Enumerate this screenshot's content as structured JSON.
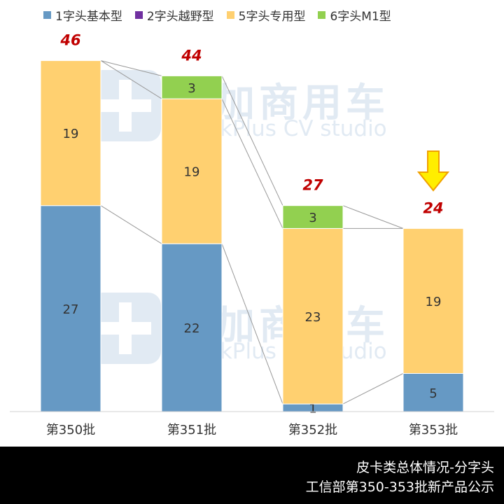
{
  "legend": [
    {
      "label": "1字头基本型",
      "color": "#6699c4"
    },
    {
      "label": "2字头越野型",
      "color": "#7030a0"
    },
    {
      "label": "5字头专用型",
      "color": "#ffd070"
    },
    {
      "label": "6字头M1型",
      "color": "#92d050"
    }
  ],
  "watermark": {
    "cn": "提加商用车",
    "en": "TruckPlus CV studio"
  },
  "footer": {
    "line1": "皮卡类总体情况-分字头",
    "line2": "工信部第350-353批新产品公示"
  },
  "chart_data": {
    "type": "bar",
    "stacked": true,
    "categories": [
      "第350批",
      "第351批",
      "第352批",
      "第353批"
    ],
    "series": [
      {
        "name": "1字头基本型",
        "values": [
          27,
          22,
          1,
          5
        ],
        "color": "#6699c4"
      },
      {
        "name": "2字头越野型",
        "values": [
          0,
          0,
          0,
          0
        ],
        "color": "#7030a0"
      },
      {
        "name": "5字头专用型",
        "values": [
          19,
          19,
          23,
          19
        ],
        "color": "#ffd070"
      },
      {
        "name": "6字头M1型",
        "values": [
          0,
          3,
          3,
          0
        ],
        "color": "#92d050"
      }
    ],
    "totals": [
      46,
      44,
      27,
      24
    ],
    "total_label_color": "#c00000",
    "highlight_arrow_category": "第353批",
    "ylim": [
      0,
      50
    ],
    "grid": false,
    "legend_position": "top"
  }
}
